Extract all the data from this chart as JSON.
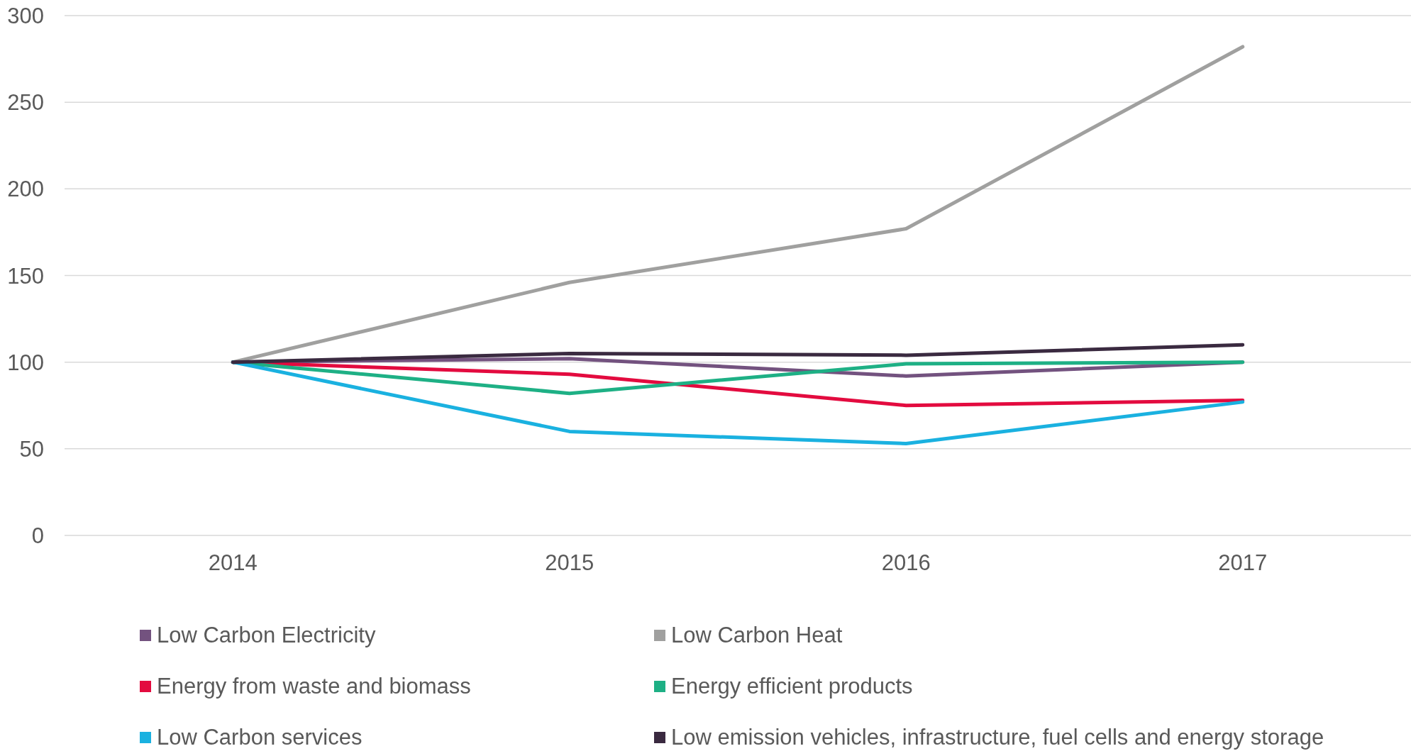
{
  "chart_data": {
    "type": "line",
    "categories": [
      "2014",
      "2015",
      "2016",
      "2017"
    ],
    "series": [
      {
        "name": "Low Carbon Electricity",
        "color": "#73527f",
        "values": [
          100,
          102,
          92,
          100
        ]
      },
      {
        "name": "Low Carbon Heat",
        "color": "#a0a09f",
        "values": [
          100,
          146,
          177,
          282
        ]
      },
      {
        "name": "Energy from waste and biomass",
        "color": "#e30b3f",
        "values": [
          100,
          93,
          75,
          78
        ]
      },
      {
        "name": "Energy efficient products",
        "color": "#1eb085",
        "values": [
          100,
          82,
          99,
          100
        ]
      },
      {
        "name": "Low Carbon services",
        "color": "#1ab1e0",
        "values": [
          100,
          60,
          53,
          77
        ]
      },
      {
        "name": "Low emission vehicles, infrastructure, fuel cells and energy storage",
        "color": "#3a2a40",
        "values": [
          100,
          105,
          104,
          110
        ]
      }
    ],
    "ylim": [
      0,
      300
    ],
    "yticks": [
      0,
      50,
      100,
      150,
      200,
      250,
      300
    ],
    "grid": "y",
    "legend": "bottom"
  }
}
